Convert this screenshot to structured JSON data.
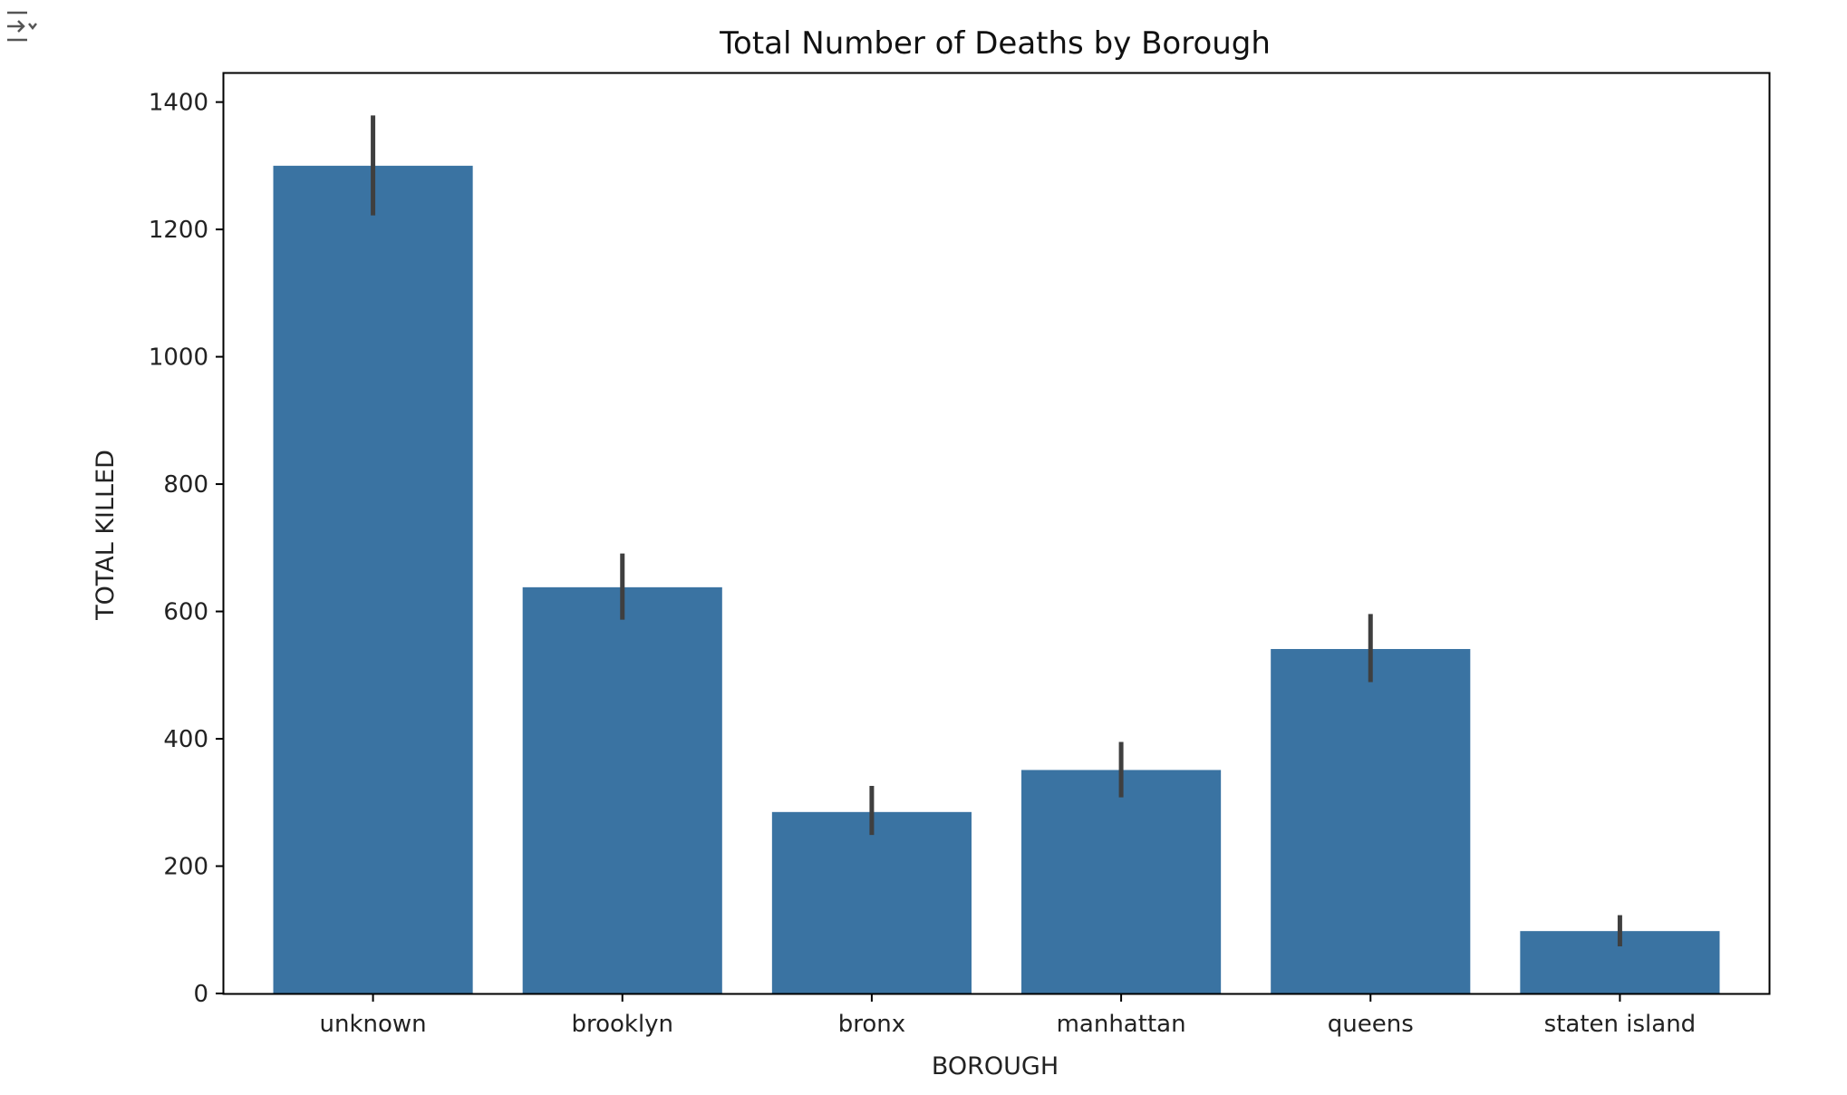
{
  "cell": {
    "toggle_icon": "collapse-output-icon"
  },
  "colors": {
    "bar": "#3a73a2",
    "errorbar": "#3f3f3f",
    "axis": "#000000"
  },
  "chart_data": {
    "type": "bar",
    "title": "Total Number of Deaths by Borough",
    "xlabel": "BOROUGH",
    "ylabel": "TOTAL KILLED",
    "categories": [
      "unknown",
      "brooklyn",
      "bronx",
      "manhattan",
      "queens",
      "staten island"
    ],
    "values": [
      1300,
      638,
      285,
      351,
      541,
      98
    ],
    "error_low": [
      1222,
      587,
      249,
      308,
      489,
      74
    ],
    "error_high": [
      1379,
      691,
      326,
      395,
      596,
      123
    ],
    "yticks": [
      0,
      200,
      400,
      600,
      800,
      1000,
      1200,
      1400
    ],
    "ylim": [
      0,
      1445
    ],
    "grid": false,
    "legend": false
  }
}
